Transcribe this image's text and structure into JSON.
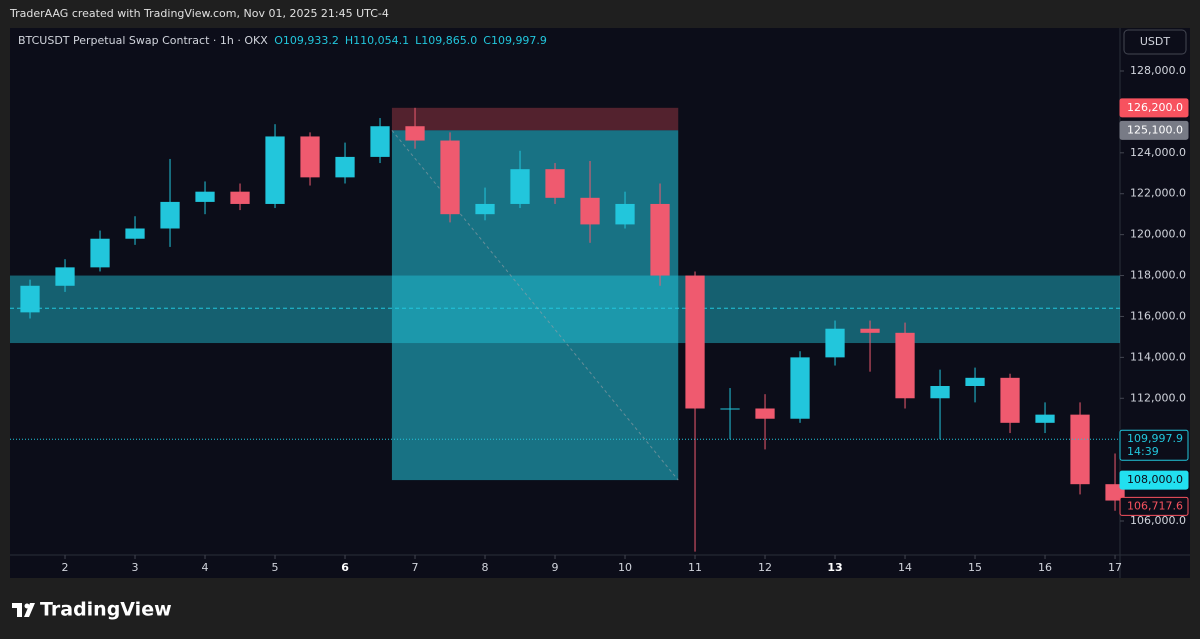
{
  "header": {
    "caption": "TraderAAG created with TradingView.com, Nov 01, 2025 21:45 UTC-4"
  },
  "chart_data": {
    "type": "candlestick",
    "title": "BTCUSDT Perpetual Swap Contract · 1h · OKX",
    "ohlc_legend": [
      "O109,933.2",
      "H110,054.1",
      "L109,865.0",
      "C109,997.9"
    ],
    "currency": "USDT",
    "x": [
      1.5,
      2,
      2.5,
      3,
      3.5,
      4,
      4.5,
      5,
      5.5,
      6,
      6.5,
      7,
      7.5,
      8,
      8.5,
      9,
      9.5,
      10,
      10.5,
      11,
      11.5,
      12,
      12.5,
      13,
      13.5,
      14,
      14.5,
      15,
      15.5,
      16,
      16.5,
      17
    ],
    "open": [
      116200,
      117500,
      118400,
      119800,
      120300,
      121600,
      122100,
      121500,
      124800,
      122800,
      123800,
      125300,
      124600,
      121000,
      121500,
      123200,
      121800,
      120500,
      121500,
      118000,
      111500,
      111500,
      111000,
      114000,
      115400,
      115200,
      112000,
      112600,
      113000,
      110800,
      111200,
      107800
    ],
    "high": [
      117800,
      118800,
      120200,
      120900,
      123700,
      122600,
      122500,
      125400,
      125000,
      124500,
      125700,
      126200,
      125000,
      122300,
      124100,
      123500,
      123600,
      122100,
      122500,
      118200,
      112500,
      112200,
      114300,
      115800,
      115800,
      115700,
      113400,
      113500,
      113200,
      111800,
      111800,
      109300
    ],
    "low": [
      115900,
      117200,
      118200,
      119500,
      119400,
      121000,
      121200,
      121300,
      122400,
      122500,
      123500,
      124200,
      120600,
      120700,
      121300,
      121500,
      119600,
      120300,
      117500,
      104500,
      110000,
      109500,
      110800,
      113600,
      113300,
      111500,
      110000,
      111800,
      110300,
      110300,
      107300,
      106500
    ],
    "close": [
      117500,
      118400,
      119800,
      120300,
      121600,
      122100,
      121500,
      124800,
      122800,
      123800,
      125300,
      124600,
      121000,
      121500,
      123200,
      121800,
      120500,
      121500,
      118000,
      111500,
      111500,
      111000,
      114000,
      115400,
      115200,
      112000,
      112600,
      113000,
      110800,
      111200,
      107800,
      107000
    ],
    "up_color": "#22c6dc",
    "down_color": "#ef5a6f",
    "xlim": [
      1.214,
      17.071
    ],
    "xticks": [
      2,
      3,
      4,
      5,
      6,
      7,
      8,
      9,
      10,
      11,
      12,
      13,
      14,
      15,
      16,
      17
    ],
    "bold_xticks": [
      6,
      13
    ],
    "ylim": [
      104338,
      130102
    ],
    "yticks": [
      {
        "value": 106000,
        "label": "106,000.0"
      },
      {
        "value": 108000,
        "label": "108,000.0"
      },
      {
        "value": 110000,
        "label": "110,000.0"
      },
      {
        "value": 112000,
        "label": "112,000.0"
      },
      {
        "value": 114000,
        "label": "114,000.0"
      },
      {
        "value": 116000,
        "label": "116,000.0"
      },
      {
        "value": 118000,
        "label": "118,000.0"
      },
      {
        "value": 120000,
        "label": "120,000.0"
      },
      {
        "value": 122000,
        "label": "122,000.0"
      },
      {
        "value": 124000,
        "label": "124,000.0"
      },
      {
        "value": 128000,
        "label": "128,000.0"
      }
    ],
    "zone": {
      "ylim": [
        114700,
        118000
      ],
      "midline": 116400,
      "color": "#22c6dc"
    },
    "position": {
      "x": [
        6.67,
        10.76
      ],
      "stop": 126200,
      "entry": 125100,
      "target": 108000
    },
    "price_labels": [
      {
        "value": 126200,
        "label": "126,200.0",
        "color": "#f7525f"
      },
      {
        "value": 125100,
        "label": "125,100.0",
        "color": "#787b86"
      },
      {
        "value": 109997.9,
        "label": "109,997.9",
        "color": "#22c6dc",
        "countdown": "14:39"
      },
      {
        "value": 108000,
        "label": "108,000.0",
        "color": "#22e0f0"
      },
      {
        "value": 106717.6,
        "label": "106,717.6",
        "color": "#f7525f"
      }
    ]
  },
  "footer": {
    "brand": "TradingView"
  }
}
